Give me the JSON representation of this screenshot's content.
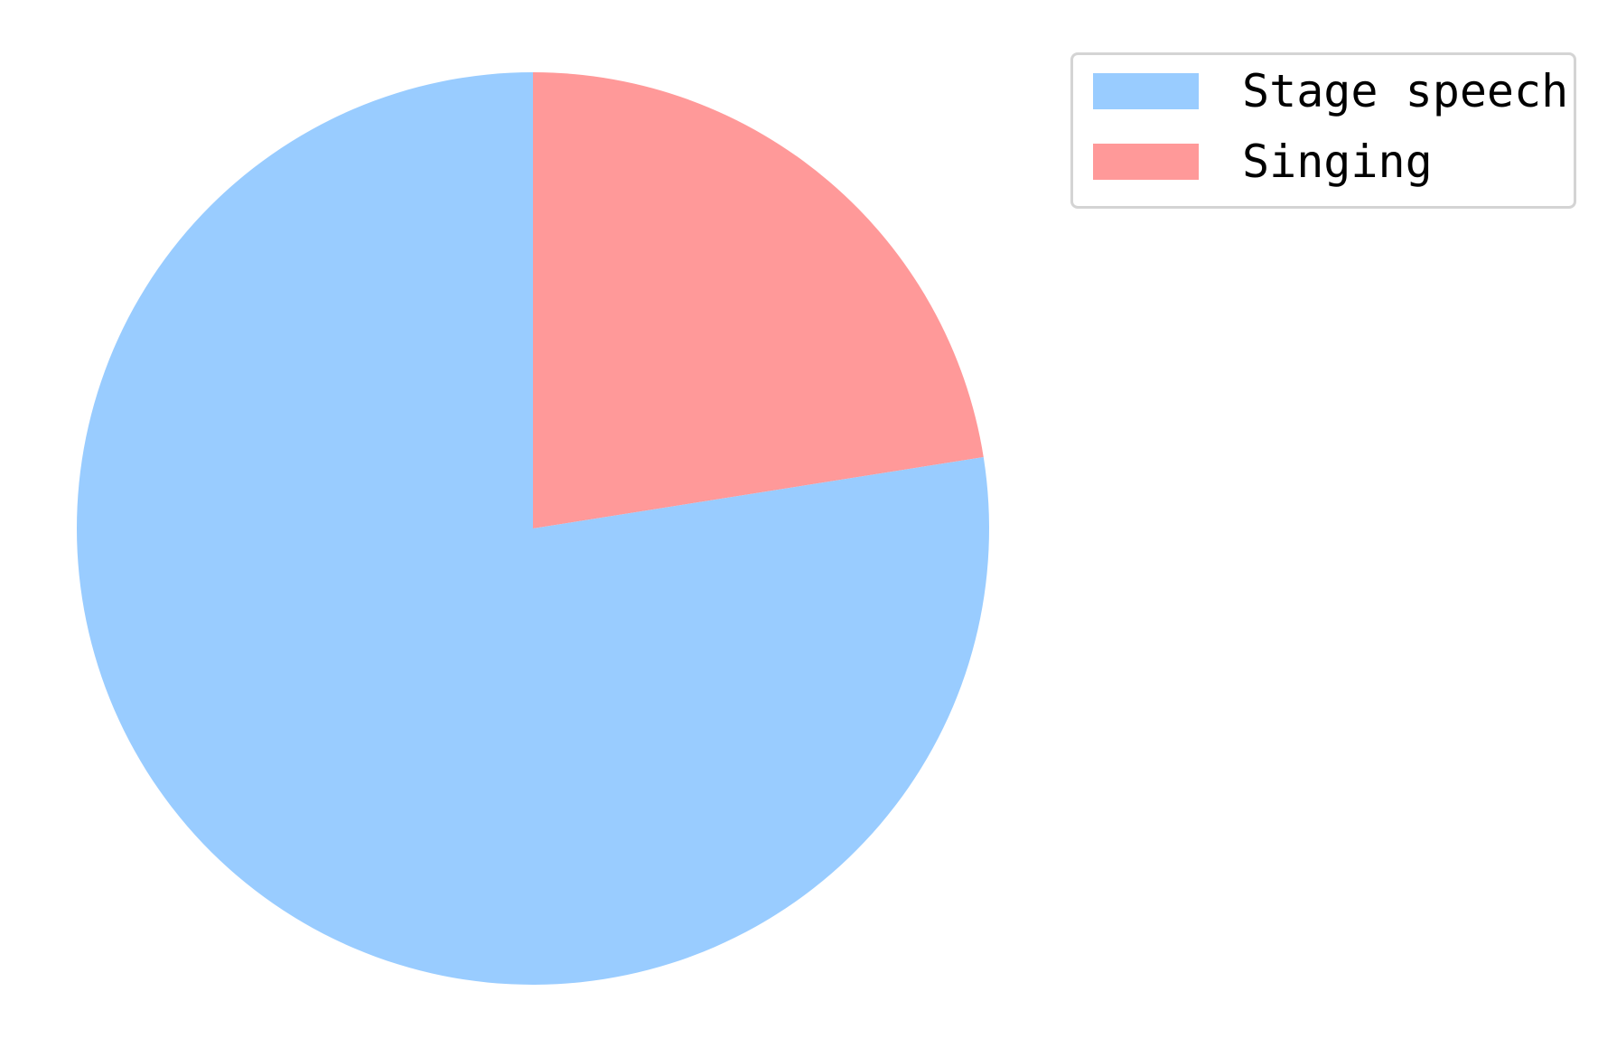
{
  "chart_data": {
    "type": "pie",
    "title": "",
    "start_angle_deg": 90,
    "direction": "clockwise",
    "slices": [
      {
        "label": "Singing",
        "value": 22.5,
        "color": "#ff9999"
      },
      {
        "label": "Stage speech",
        "value": 77.5,
        "color": "#99ccff"
      }
    ],
    "legend": {
      "placement": "top-right",
      "entries": [
        {
          "label": "Stage speech",
          "color": "#99ccff"
        },
        {
          "label": "Singing",
          "color": "#ff9999"
        }
      ]
    }
  }
}
